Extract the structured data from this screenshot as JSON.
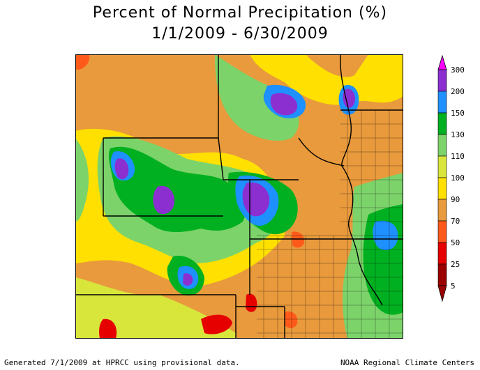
{
  "title": "Percent of Normal Precipitation (%)",
  "subtitle": "1/1/2009 - 6/30/2009",
  "footer": {
    "left": "Generated 7/1/2009 at HPRCC using provisional data.",
    "right": "NOAA Regional Climate Centers"
  },
  "legend": {
    "bins": [
      {
        "label": "300",
        "color": "#ff00ff"
      },
      {
        "label": "200",
        "color": "#8b2fd1"
      },
      {
        "label": "150",
        "color": "#1e90ff"
      },
      {
        "label": "130",
        "color": "#00b020"
      },
      {
        "label": "110",
        "color": "#7cd36a"
      },
      {
        "label": "100",
        "color": "#d8e63c"
      },
      {
        "label": "90",
        "color": "#ffe000"
      },
      {
        "label": "70",
        "color": "#e89a3c"
      },
      {
        "label": "50",
        "color": "#ff5a1a"
      },
      {
        "label": "25",
        "color": "#e60000"
      },
      {
        "label": "5",
        "color": "#9b0000"
      }
    ]
  }
}
